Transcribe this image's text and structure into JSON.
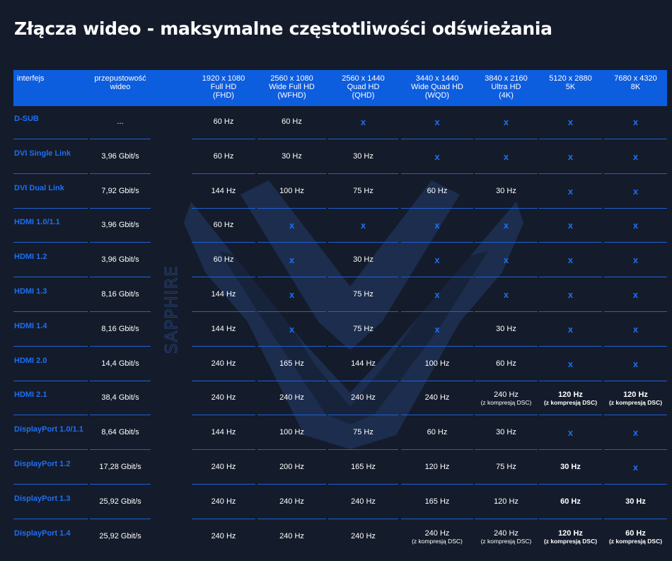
{
  "title": "Złącza wideo - maksymalne częstotliwości odświeżania",
  "watermark_text": "SAPPHIRE",
  "colors": {
    "background": "#141b2a",
    "header": "#0d5ddf",
    "accent": "#1f6ff2",
    "divider": "#1e62d6"
  },
  "headers": [
    [
      "interfejs"
    ],
    [
      "przepustowość",
      "wideo"
    ],
    [
      "1920 x 1080",
      "Full HD",
      "(FHD)"
    ],
    [
      "2560 x 1080",
      "Wide Full HD",
      "(WFHD)"
    ],
    [
      "2560 x 1440",
      "Quad HD",
      "(QHD)"
    ],
    [
      "3440 x 1440",
      "Wide Quad HD",
      "(WQD)"
    ],
    [
      "3840 x 2160",
      "Ultra HD",
      "(4K)"
    ],
    [
      "5120 x 2880",
      "5K"
    ],
    [
      "7680 x 4320",
      "8K"
    ]
  ],
  "rows": [
    {
      "interface": "D-SUB",
      "bandwidth": "...",
      "cells": [
        "60 Hz",
        "60 Hz",
        "x",
        "x",
        "x",
        "x",
        "x"
      ]
    },
    {
      "interface": "DVI Single Link",
      "bandwidth": "3,96 Gbit/s",
      "cells": [
        "60 Hz",
        "30 Hz",
        "30 Hz",
        "x",
        "x",
        "x",
        "x"
      ]
    },
    {
      "interface": "DVI Dual Link",
      "bandwidth": "7,92 Gbit/s",
      "cells": [
        "144 Hz",
        "100 Hz",
        "75 Hz",
        "60 Hz",
        "30 Hz",
        "x",
        "x"
      ]
    },
    {
      "interface": "HDMI 1.0/1.1",
      "bandwidth": "3,96 Gbit/s",
      "cells": [
        "60 Hz",
        "x",
        "x",
        "x",
        "x",
        "x",
        "x"
      ]
    },
    {
      "interface": "HDMI 1.2",
      "bandwidth": "3,96 Gbit/s",
      "cells": [
        "60 Hz",
        "x",
        "30 Hz",
        "x",
        "x",
        "x",
        "x"
      ]
    },
    {
      "interface": "HDMI 1.3",
      "bandwidth": "8,16 Gbit/s",
      "cells": [
        "144 Hz",
        "x",
        "75 Hz",
        "x",
        "x",
        "x",
        "x"
      ]
    },
    {
      "interface": "HDMI 1.4",
      "bandwidth": "8,16 Gbit/s",
      "cells": [
        "144 Hz",
        "x",
        "75 Hz",
        "x",
        "30 Hz",
        "x",
        "x"
      ]
    },
    {
      "interface": "HDMI 2.0",
      "bandwidth": "14,4 Gbit/s",
      "cells": [
        "240 Hz",
        "165 Hz",
        "144 Hz",
        "100 Hz",
        "60 Hz",
        "x",
        "x"
      ]
    },
    {
      "interface": "HDMI 2.1",
      "bandwidth": "38,4 Gbit/s",
      "cells": [
        "240 Hz",
        "240 Hz",
        "240 Hz",
        "240 Hz",
        {
          "v": "240 Hz",
          "note": "(z kompresją DSC)"
        },
        {
          "v": "120 Hz",
          "note": "(z kompresją DSC)",
          "bold": true
        },
        {
          "v": "120 Hz",
          "note": "(z kompresją DSC)",
          "bold": true
        }
      ]
    },
    {
      "interface": "DisplayPort 1.0/1.1",
      "bandwidth": "8,64 Gbit/s",
      "cells": [
        "144 Hz",
        "100 Hz",
        "75 Hz",
        "60 Hz",
        "30 Hz",
        "x",
        "x"
      ]
    },
    {
      "interface": "DisplayPort 1.2",
      "bandwidth": "17,28 Gbit/s",
      "cells": [
        "240 Hz",
        "200 Hz",
        "165 Hz",
        "120 Hz",
        "75 Hz",
        {
          "v": "30 Hz",
          "bold": true
        },
        "x"
      ]
    },
    {
      "interface": "DisplayPort 1.3",
      "bandwidth": "25,92 Gbit/s",
      "cells": [
        "240 Hz",
        "240 Hz",
        "240 Hz",
        "165 Hz",
        "120 Hz",
        {
          "v": "60 Hz",
          "bold": true
        },
        {
          "v": "30 Hz",
          "bold": true
        }
      ]
    },
    {
      "interface": "DisplayPort 1.4",
      "bandwidth": "25,92 Gbit/s",
      "cells": [
        "240 Hz",
        "240 Hz",
        "240 Hz",
        {
          "v": "240 Hz",
          "note": "(z kompresją DSC)"
        },
        {
          "v": "240 Hz",
          "note": "(z kompresją DSC)"
        },
        {
          "v": "120 Hz",
          "note": "(z kompresją DSC)",
          "bold": true
        },
        {
          "v": "60 Hz",
          "note": "(z kompresją DSC)",
          "bold": true
        }
      ]
    }
  ]
}
